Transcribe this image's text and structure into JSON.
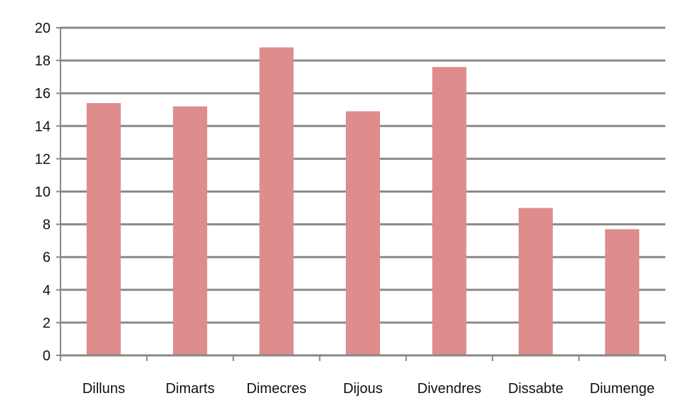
{
  "chart_data": {
    "type": "bar",
    "title": "",
    "xlabel": "",
    "ylabel": "",
    "categories": [
      "Dilluns",
      "Dimarts",
      "Dimecres",
      "Dijous",
      "Divendres",
      "Dissabte",
      "Diumenge"
    ],
    "values": [
      15.4,
      15.2,
      18.8,
      14.9,
      17.6,
      9.0,
      7.7
    ],
    "ylim": [
      0,
      20
    ],
    "yticks": [
      0,
      2,
      4,
      6,
      8,
      10,
      12,
      14,
      16,
      18,
      20
    ],
    "grid": true,
    "legend": "none",
    "bar_color": "#de8c8c",
    "grid_color": "#8a8a8a",
    "axis_color": "#888888"
  }
}
